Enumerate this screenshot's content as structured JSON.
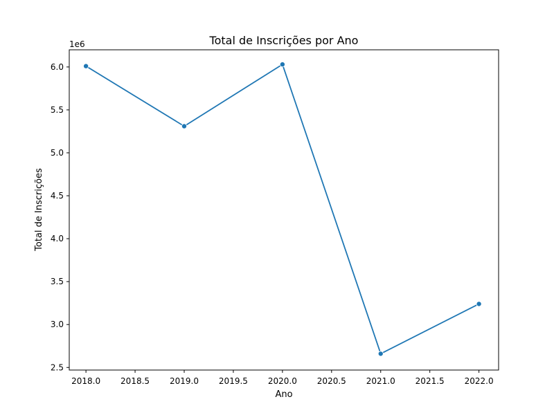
{
  "chart_data": {
    "type": "line",
    "title": "Total de Inscrições por Ano",
    "xlabel": "Ano",
    "ylabel": "Total de Inscrições",
    "y_offset_label": "1e6",
    "x": [
      2018,
      2019,
      2020,
      2021,
      2022
    ],
    "series": [
      {
        "values": [
          6010000,
          5310000,
          6030000,
          2660000,
          3240000
        ],
        "color": "#1f77b4",
        "marker": "circle"
      }
    ],
    "xlim": [
      2017.83,
      2022.2
    ],
    "ylim": [
      2.47,
      6.2
    ],
    "y_scale_factor": 1000000,
    "x_ticks": [
      2018.0,
      2018.5,
      2019.0,
      2019.5,
      2020.0,
      2020.5,
      2021.0,
      2021.5,
      2022.0
    ],
    "x_tick_labels": [
      "2018.0",
      "2018.5",
      "2019.0",
      "2019.5",
      "2020.0",
      "2020.5",
      "2021.0",
      "2021.5",
      "2022.0"
    ],
    "y_ticks": [
      2.5,
      3.0,
      3.5,
      4.0,
      4.5,
      5.0,
      5.5,
      6.0
    ],
    "y_tick_labels": [
      "2.5",
      "3.0",
      "3.5",
      "4.0",
      "4.5",
      "5.0",
      "5.5",
      "6.0"
    ],
    "grid": false,
    "legend": "none"
  }
}
